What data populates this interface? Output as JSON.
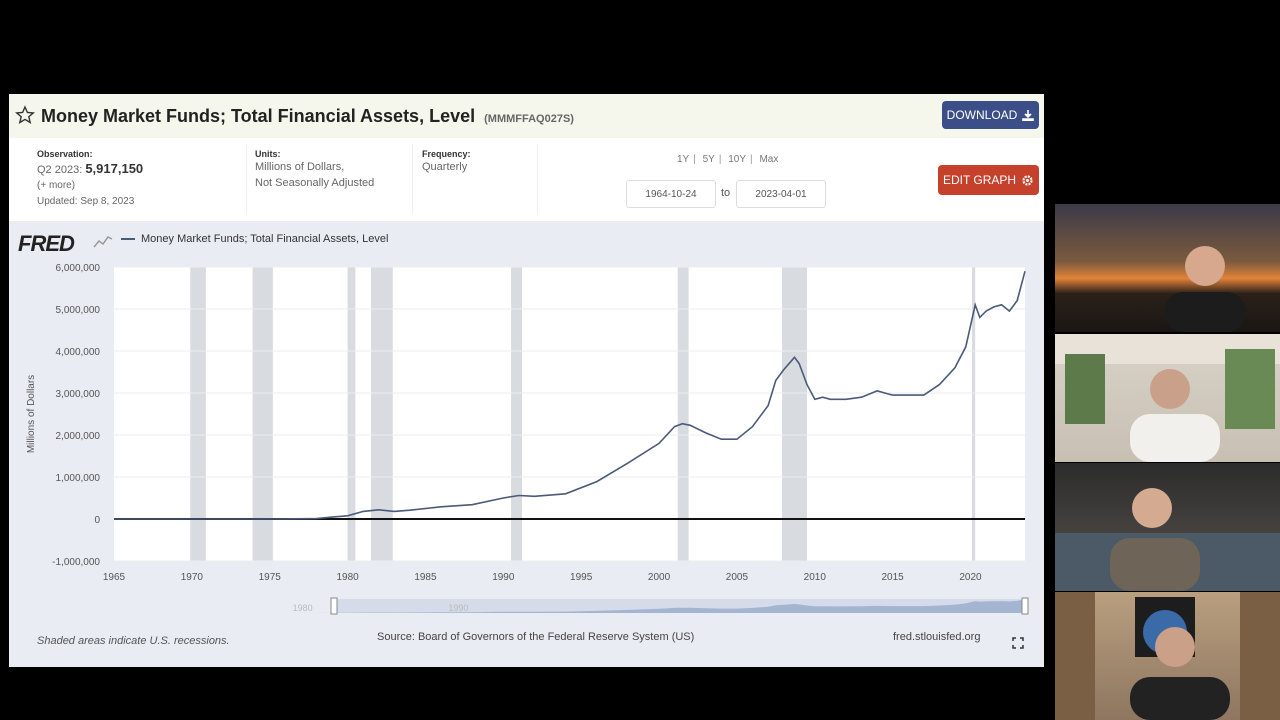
{
  "header": {
    "title": "Money Market Funds; Total Financial Assets, Level",
    "series_id": "(MMMFFAQ027S)",
    "download_label": "DOWNLOAD"
  },
  "meta": {
    "observation_label": "Observation:",
    "observation_period": "Q2 2023:",
    "observation_value": "5,917,150",
    "more_label": "(+ more)",
    "updated": "Updated: Sep 8, 2023",
    "units_label": "Units:",
    "units_line1": "Millions of Dollars,",
    "units_line2": "Not Seasonally Adjusted",
    "frequency_label": "Frequency:",
    "frequency_value": "Quarterly"
  },
  "range": {
    "links": [
      "1Y",
      "5Y",
      "10Y",
      "Max"
    ],
    "start_date": "1964-10-24",
    "to_label": "to",
    "end_date": "2023-04-01"
  },
  "edit_graph_label": "EDIT GRAPH",
  "logo": "FRED",
  "footer": {
    "recession_note": "Shaded areas indicate U.S. recessions.",
    "source": "Source: Board of Governors of the Federal Reserve System (US)",
    "site": "fred.stlouisfed.org"
  },
  "navigator_labels": [
    "1980",
    "1990"
  ],
  "colors": {
    "line": "#4b5a7a",
    "download_btn": "#3c4e87",
    "edit_btn": "#c5412b",
    "recession": "#d8dbe0"
  },
  "icons": {
    "star": "star-icon",
    "download": "download-icon",
    "gear": "gear-icon",
    "fullscreen": "fullscreen-icon"
  },
  "chart_data": {
    "type": "line",
    "title": "",
    "ylabel": "Millions of Dollars",
    "xlim": [
      1965,
      2023.5
    ],
    "ylim": [
      -1000000,
      6000000
    ],
    "y_ticks": [
      -1000000,
      0,
      1000000,
      2000000,
      3000000,
      4000000,
      5000000,
      6000000
    ],
    "y_tick_labels": [
      "-1,000,000",
      "0",
      "1,000,000",
      "2,000,000",
      "3,000,000",
      "4,000,000",
      "5,000,000",
      "6,000,000"
    ],
    "x_ticks": [
      1965,
      1970,
      1975,
      1980,
      1985,
      1990,
      1995,
      2000,
      2005,
      2010,
      2015,
      2020
    ],
    "grid": true,
    "recessions": [
      [
        1969.9,
        1970.9
      ],
      [
        1973.9,
        1975.2
      ],
      [
        1980.0,
        1980.5
      ],
      [
        1981.5,
        1982.9
      ],
      [
        1990.5,
        1991.2
      ],
      [
        2001.2,
        2001.9
      ],
      [
        2007.9,
        2009.5
      ],
      [
        2020.1,
        2020.3
      ]
    ],
    "series": [
      {
        "name": "Money Market Funds; Total Financial Assets, Level",
        "x": [
          1965,
          1974,
          1976,
          1978,
          1979,
          1980,
          1981,
          1982,
          1983,
          1984,
          1986,
          1988,
          1990,
          1991,
          1992,
          1994,
          1996,
          1998,
          2000,
          2001,
          2001.5,
          2002,
          2003,
          2004,
          2005,
          2006,
          2007,
          2007.5,
          2008,
          2008.7,
          2009,
          2009.5,
          2010,
          2010.5,
          2011,
          2012,
          2013,
          2014,
          2015,
          2016,
          2017,
          2018,
          2019,
          2019.7,
          2020,
          2020.3,
          2020.6,
          2021,
          2021.5,
          2022,
          2022.5,
          2023,
          2023.5
        ],
        "y": [
          0,
          0,
          3000,
          10000,
          45000,
          76000,
          180000,
          220000,
          180000,
          210000,
          290000,
          340000,
          500000,
          560000,
          540000,
          600000,
          890000,
          1330000,
          1800000,
          2200000,
          2270000,
          2230000,
          2050000,
          1900000,
          1900000,
          2200000,
          2700000,
          3300000,
          3550000,
          3850000,
          3700000,
          3200000,
          2850000,
          2900000,
          2850000,
          2850000,
          2900000,
          3050000,
          2950000,
          2950000,
          2950000,
          3200000,
          3600000,
          4100000,
          4600000,
          5100000,
          4800000,
          4950000,
          5050000,
          5100000,
          4950000,
          5200000,
          5900000
        ]
      }
    ]
  }
}
